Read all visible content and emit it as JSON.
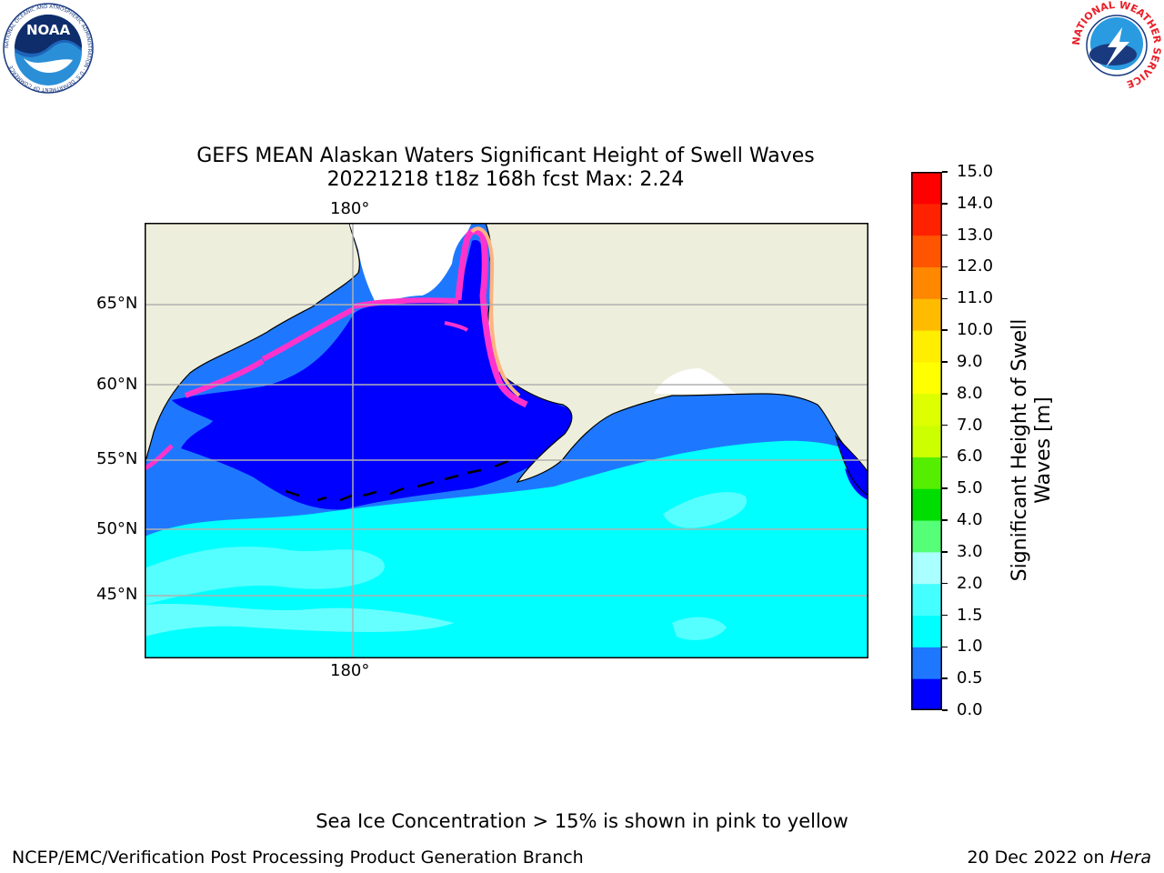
{
  "header": {
    "noaa_logo_text": "NOAA",
    "noaa_ring_text": "NATIONAL OCEANIC AND ATMOSPHERIC ADMINISTRATION · U.S. DEPARTMENT OF COMMERCE",
    "nws_ring_text": "NATIONAL WEATHER SERVICE"
  },
  "title": {
    "line1": "GEFS MEAN Alaskan Waters Significant Height of Swell Waves",
    "line2": "20221218 t18z 168h fcst   Max: 2.24"
  },
  "map": {
    "top_lon_label": "180°",
    "bottom_lon_label": "180°",
    "lat_labels": [
      "65°N",
      "60°N",
      "55°N",
      "50°N",
      "45°N"
    ],
    "colors": {
      "land": "#eeeedc",
      "ice_free_white": "#ffffff",
      "ice_pink": "#ff33cc",
      "ice_peach": "#ffb380",
      "ice_yellow": "#ffdd55",
      "grid": "#b0b0b0"
    }
  },
  "colorbar": {
    "label_line1": "Significant Height of Swell",
    "label_line2": "Waves [m]",
    "ticks": [
      "15.0",
      "14.0",
      "13.0",
      "12.0",
      "11.0",
      "10.0",
      "9.0",
      "8.0",
      "7.0",
      "6.0",
      "5.0",
      "4.0",
      "3.0",
      "2.0",
      "1.5",
      "1.0",
      "0.5",
      "0.0"
    ],
    "colors_bottom_to_top": [
      "#0000ff",
      "#1e78ff",
      "#00ffff",
      "#44ffff",
      "#aaffff",
      "#55ff77",
      "#00dd00",
      "#55ee00",
      "#ccff00",
      "#ddff00",
      "#ffff00",
      "#ffee00",
      "#ffbb00",
      "#ff8800",
      "#ff5500",
      "#ff2200",
      "#ff0000"
    ]
  },
  "footer": {
    "note": "Sea Ice Concentration > 15% is shown in pink to yellow",
    "branch": "NCEP/EMC/Verification Post Processing Product Generation Branch",
    "date": "20 Dec 2022 on ",
    "machine": "Hera"
  }
}
